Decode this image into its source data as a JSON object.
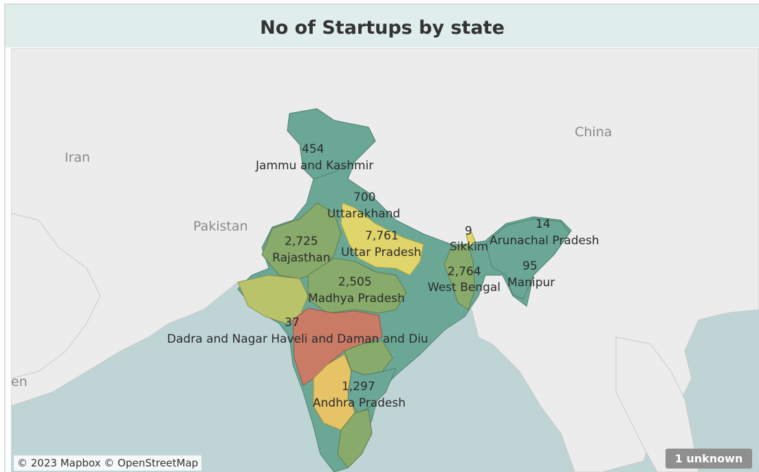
{
  "title": "No of Startups by state",
  "countries": [
    "Iran",
    "Pakistan",
    "China",
    "en"
  ],
  "states": [
    {
      "name": "Jammu and Kashmir",
      "value": "454",
      "color": "#6aa895"
    },
    {
      "name": "Uttarakhand",
      "value": "700",
      "color": "#6aa895"
    },
    {
      "name": "Uttar Pradesh",
      "value": "7,761",
      "color": "#e0d56b"
    },
    {
      "name": "Rajasthan",
      "value": "2,725",
      "color": "#88aa6a"
    },
    {
      "name": "Madhya Pradesh",
      "value": "2,505",
      "color": "#88aa6a"
    },
    {
      "name": "West Bengal",
      "value": "2,764",
      "color": "#88aa6a"
    },
    {
      "name": "Sikkim",
      "value": "9",
      "color": "#6aa895"
    },
    {
      "name": "Arunachal Pradesh",
      "value": "14",
      "color": "#6aa895"
    },
    {
      "name": "Manipur",
      "value": "95",
      "color": "#6aa895"
    },
    {
      "name": "Dadra and Nagar Haveli and Daman and Diu",
      "value": "37",
      "color": "#6aa895"
    },
    {
      "name": "Andhra Pradesh",
      "value": "1,297",
      "color": "#6aa895"
    }
  ],
  "attribution": "© 2023 Mapbox © OpenStreetMap",
  "unknown_badge": "1 unknown",
  "colors": {
    "teal": "#6aa895",
    "green": "#88aa6a",
    "olive": "#b9c36a",
    "yellow": "#e0d56b",
    "gold": "#e6c466",
    "orange_red": "#c97b66",
    "land": "#ececec",
    "water": "#bfd4d5"
  }
}
